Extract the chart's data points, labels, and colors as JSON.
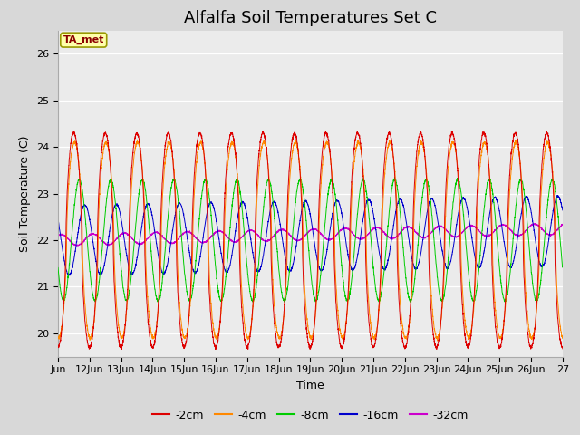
{
  "title": "Alfalfa Soil Temperatures Set C",
  "ylabel": "Soil Temperature (C)",
  "xlabel": "Time",
  "annotation": "TA_met",
  "ylim": [
    19.5,
    26.5
  ],
  "xlim_days": [
    11,
    27
  ],
  "x_ticks_labels": [
    "Jun",
    "12Jun",
    "13Jun",
    "14Jun",
    "15Jun",
    "16Jun",
    "17Jun",
    "18Jun",
    "19Jun",
    "20Jun",
    "21Jun",
    "22Jun",
    "23Jun",
    "24Jun",
    "25Jun",
    "26Jun",
    "27"
  ],
  "x_ticks_positions": [
    11,
    12,
    13,
    14,
    15,
    16,
    17,
    18,
    19,
    20,
    21,
    22,
    23,
    24,
    25,
    26,
    27
  ],
  "colors": {
    "-2cm": "#dd0000",
    "-4cm": "#ff8800",
    "-8cm": "#00cc00",
    "-16cm": "#0000cc",
    "-32cm": "#cc00cc"
  },
  "legend_labels": [
    "-2cm",
    "-4cm",
    "-8cm",
    "-16cm",
    "-32cm"
  ],
  "background_color": "#d8d8d8",
  "plot_bg_color": "#ebebeb",
  "title_fontsize": 13,
  "axis_fontsize": 9,
  "tick_fontsize": 8,
  "legend_fontsize": 9,
  "num_points": 3840,
  "start_day": 11,
  "end_day": 27,
  "base_temp": 22.0,
  "amp_2cm": 2.3,
  "amp_4cm": 2.1,
  "amp_8cm": 1.3,
  "amp_16cm": 0.75,
  "amp_32cm": 0.12,
  "phase_2cm": 0.0,
  "phase_4cm": 0.15,
  "phase_8cm": 1.1,
  "phase_16cm": 2.2,
  "phase_32cm": 3.8,
  "drift_rate": 0.0
}
